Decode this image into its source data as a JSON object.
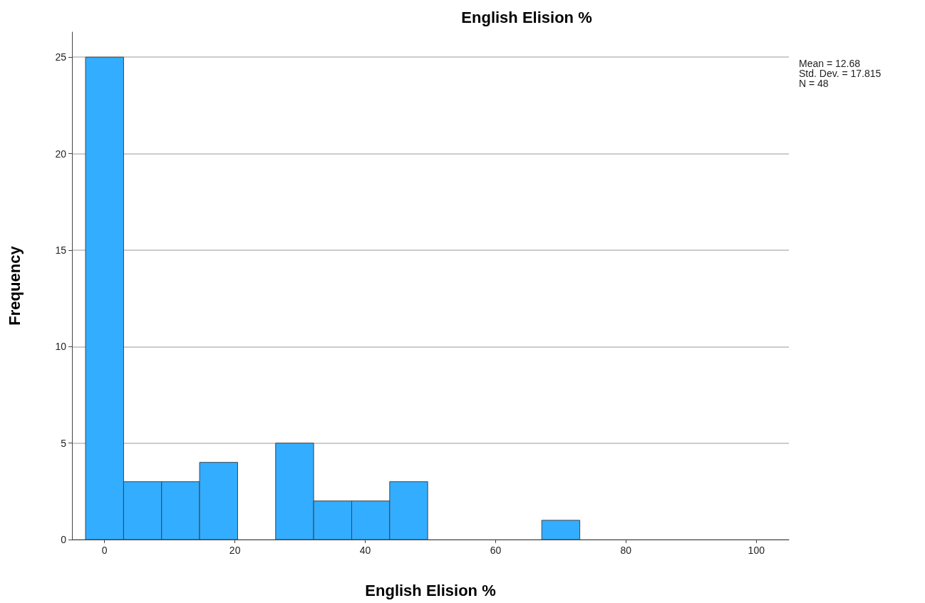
{
  "chart_data": {
    "type": "histogram",
    "title": "English Elision %",
    "xlabel": "English Elision %",
    "ylabel": "Frequency",
    "bins": [
      -2.92,
      2.92,
      8.75,
      14.58,
      20.42,
      26.25,
      32.08,
      37.92,
      43.75,
      49.58,
      55.42,
      61.25,
      67.08,
      72.92
    ],
    "values": [
      25,
      3,
      3,
      4,
      0,
      5,
      2,
      2,
      3,
      0,
      0,
      0,
      1
    ],
    "color": "#33adff",
    "xlim": [
      -5,
      105
    ],
    "xticks": [
      0,
      20,
      40,
      60,
      80,
      100
    ],
    "ylim": [
      0,
      26.3
    ],
    "yticks": [
      0,
      5,
      10,
      15,
      20,
      25
    ],
    "grid": "y",
    "annotations": [
      "Mean = 12.68",
      "Std. Dev. = 17.815",
      "N = 48"
    ]
  }
}
